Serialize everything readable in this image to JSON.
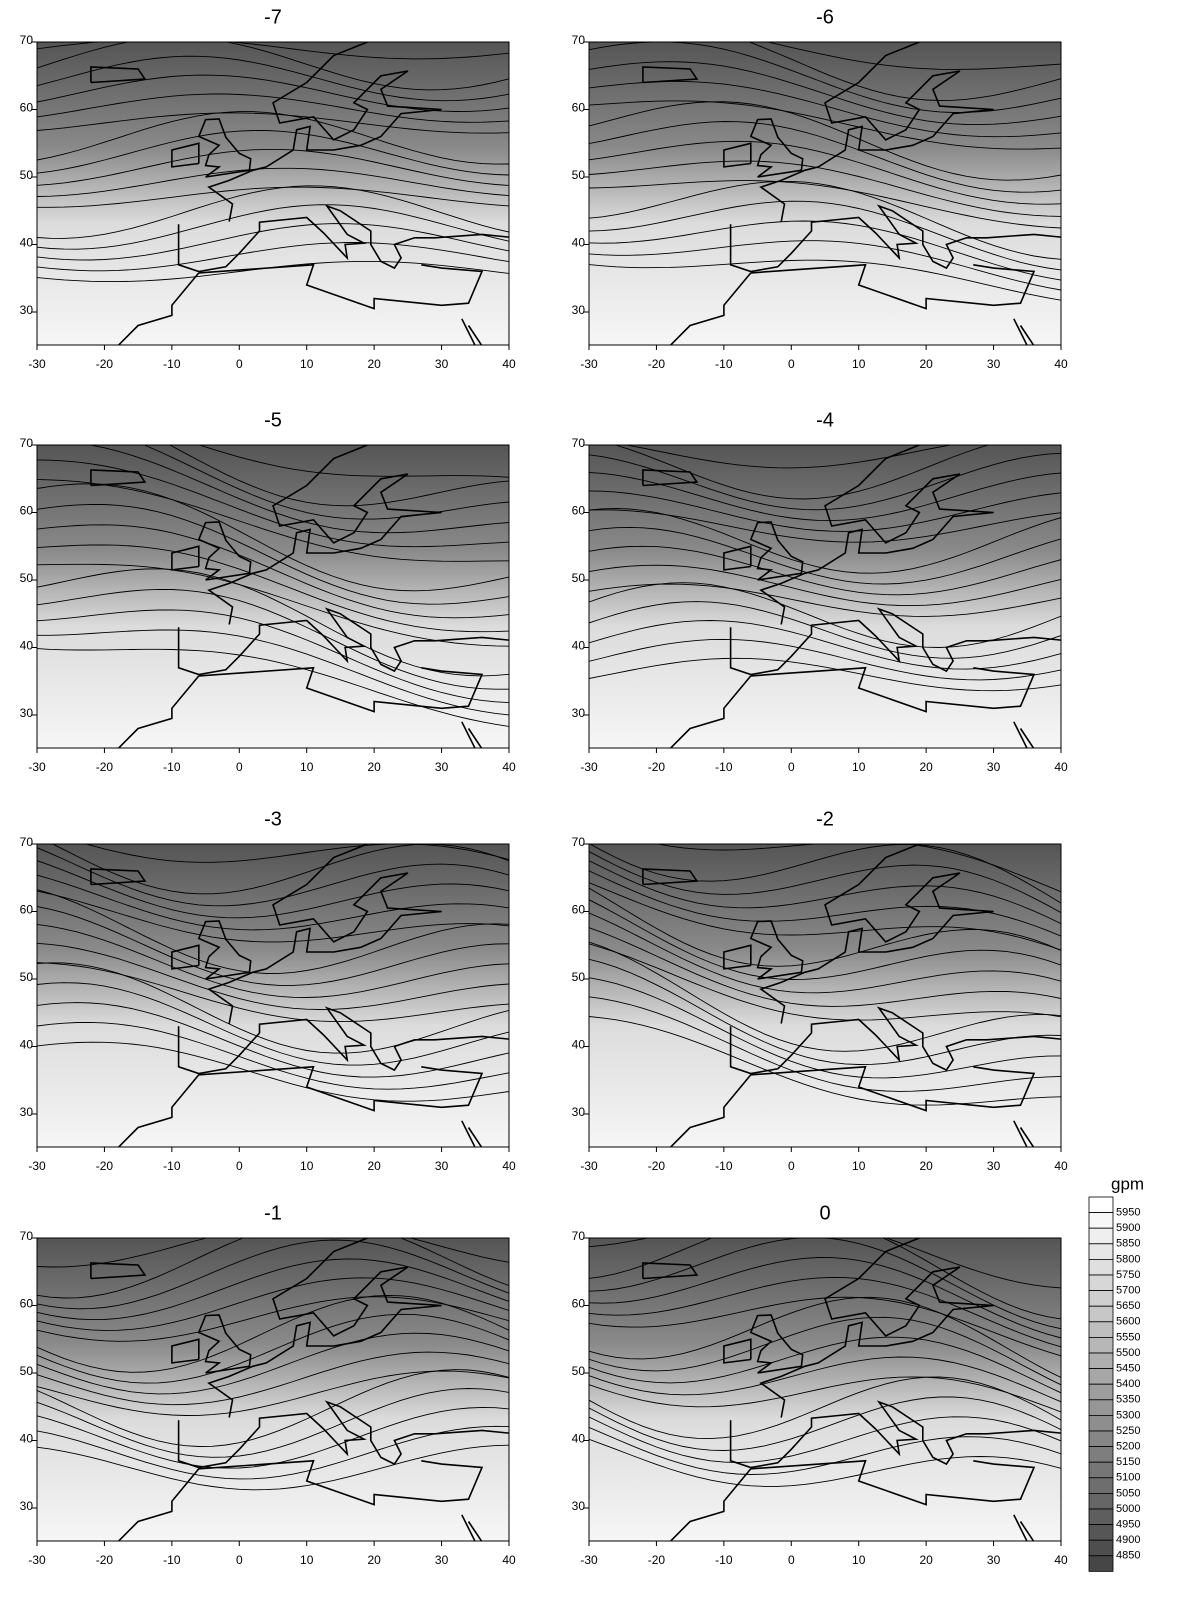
{
  "panels": [
    {
      "title": "-7"
    },
    {
      "title": "-6"
    },
    {
      "title": "-5"
    },
    {
      "title": "-4"
    },
    {
      "title": "-3"
    },
    {
      "title": "-2"
    },
    {
      "title": "-1"
    },
    {
      "title": "0"
    }
  ],
  "x_ticks": [
    -30,
    -20,
    -10,
    0,
    10,
    20,
    30,
    40
  ],
  "y_ticks": [
    30,
    40,
    50,
    60,
    70
  ],
  "legend": {
    "title": "gpm",
    "levels": [
      5950,
      5900,
      5850,
      5800,
      5750,
      5700,
      5650,
      5600,
      5550,
      5500,
      5450,
      5400,
      5350,
      5300,
      5250,
      5200,
      5150,
      5100,
      5050,
      5000,
      4950,
      4900,
      4850
    ]
  }
}
